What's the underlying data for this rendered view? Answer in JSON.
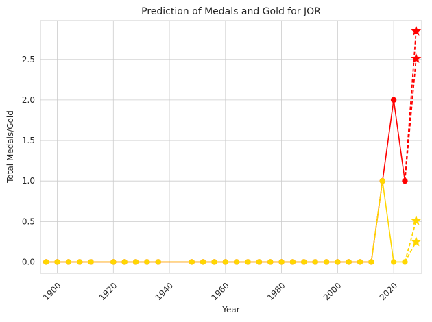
{
  "chart_data": {
    "type": "line",
    "title": "Prediction of Medals and Gold for JOR",
    "xlabel": "Year",
    "ylabel": "Total Medals/Gold",
    "xlim": [
      1894,
      2030
    ],
    "ylim": [
      -0.14,
      2.98
    ],
    "x_ticks": [
      1900,
      1920,
      1940,
      1960,
      1980,
      2000,
      2020
    ],
    "y_ticks": [
      0.0,
      0.5,
      1.0,
      1.5,
      2.0,
      2.5
    ],
    "x_tick_labels": [
      "1900",
      "1920",
      "1940",
      "1960",
      "1980",
      "2000",
      "2020"
    ],
    "y_tick_labels": [
      "0.0",
      "0.5",
      "1.0",
      "1.5",
      "2.0",
      "2.5"
    ],
    "grid": true,
    "legend": "none",
    "colors": {
      "medals": "#ff0000",
      "gold": "#ffd700"
    },
    "series": [
      {
        "id": "total-medals",
        "color": "#ff0000",
        "marker": "circle",
        "style": "solid",
        "x": [
          1896,
          1900,
          1904,
          1908,
          1912,
          1920,
          1924,
          1928,
          1932,
          1936,
          1948,
          1952,
          1956,
          1960,
          1964,
          1968,
          1972,
          1976,
          1980,
          1984,
          1988,
          1992,
          1996,
          2000,
          2004,
          2008,
          2012,
          2016,
          2020,
          2024
        ],
        "y": [
          0,
          0,
          0,
          0,
          0,
          0,
          0,
          0,
          0,
          0,
          0,
          0,
          0,
          0,
          0,
          0,
          0,
          0,
          0,
          0,
          0,
          0,
          0,
          0,
          0,
          0,
          0,
          1,
          2,
          1
        ]
      },
      {
        "id": "gold-medals",
        "color": "#ffd700",
        "marker": "circle",
        "style": "solid",
        "x": [
          1896,
          1900,
          1904,
          1908,
          1912,
          1920,
          1924,
          1928,
          1932,
          1936,
          1948,
          1952,
          1956,
          1960,
          1964,
          1968,
          1972,
          1976,
          1980,
          1984,
          1988,
          1992,
          1996,
          2000,
          2004,
          2008,
          2012,
          2016,
          2020,
          2024
        ],
        "y": [
          0,
          0,
          0,
          0,
          0,
          0,
          0,
          0,
          0,
          0,
          0,
          0,
          0,
          0,
          0,
          0,
          0,
          0,
          0,
          0,
          0,
          0,
          0,
          0,
          0,
          0,
          0,
          1,
          0,
          0
        ]
      }
    ],
    "predictions": [
      {
        "id": "medals-pred",
        "color": "#ff0000",
        "from": [
          2024,
          1
        ],
        "to": [
          [
            2028,
            2.85
          ],
          [
            2028,
            2.51
          ]
        ]
      },
      {
        "id": "gold-pred",
        "color": "#ffd700",
        "from": [
          2024,
          0
        ],
        "to": [
          [
            2028,
            0.51
          ],
          [
            2028,
            0.25
          ]
        ]
      }
    ]
  }
}
